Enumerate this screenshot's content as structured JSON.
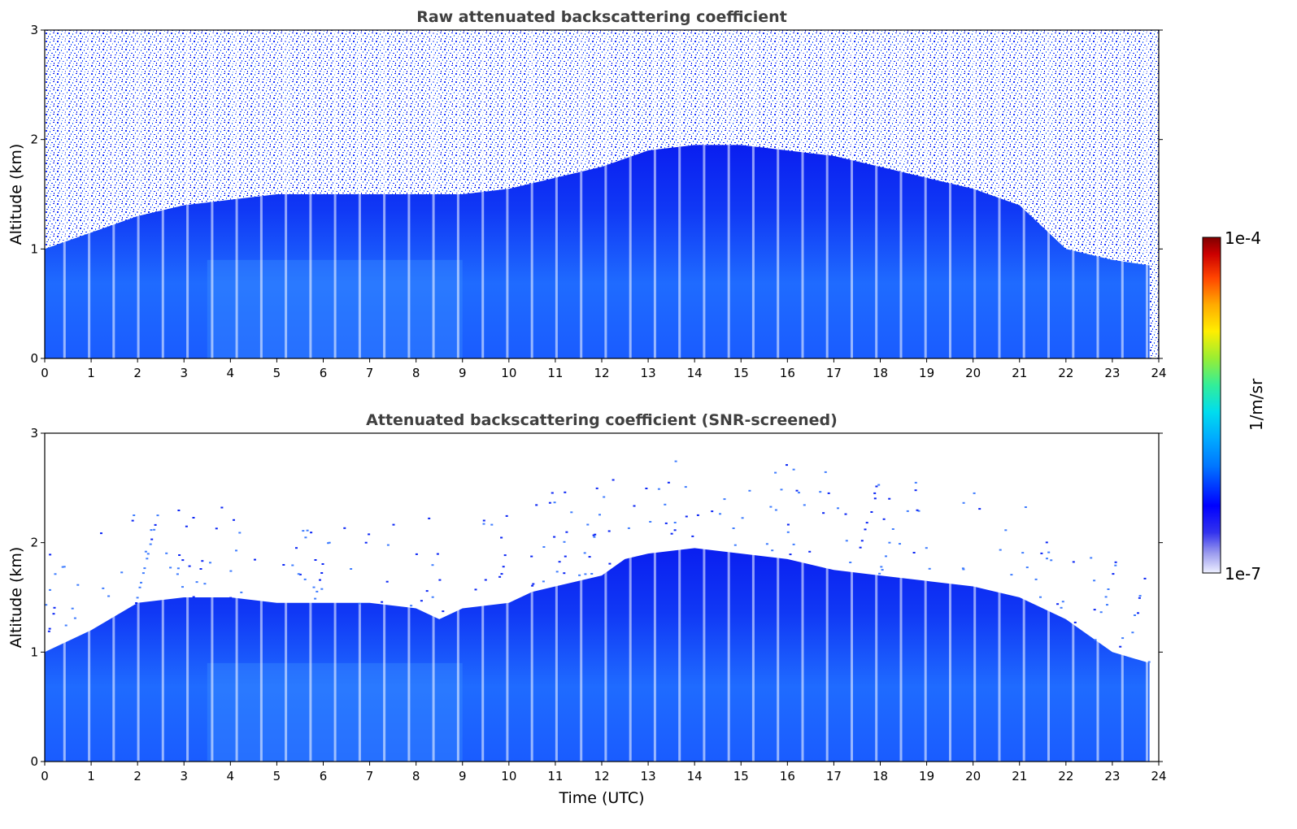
{
  "chart_data": [
    {
      "type": "heatmap",
      "title": "Raw attenuated backscattering coefficient",
      "xlabel": "",
      "ylabel": "Altitude (km)",
      "xlim": [
        0,
        24
      ],
      "ylim": [
        0,
        3
      ],
      "xticks": [
        "0",
        "1",
        "2",
        "3",
        "4",
        "5",
        "6",
        "7",
        "8",
        "9",
        "10",
        "11",
        "12",
        "13",
        "14",
        "15",
        "16",
        "17",
        "18",
        "19",
        "20",
        "21",
        "22",
        "23",
        "24"
      ],
      "yticks": [
        "0",
        "1",
        "2",
        "3"
      ],
      "colorbar": {
        "min_label": "1e-7",
        "max_label": "1e-4",
        "label": "1/m/sr",
        "scale": "log",
        "range": [
          1e-07,
          0.0001
        ]
      },
      "signal_top_km": {
        "time": [
          0,
          1,
          2,
          3,
          4,
          5,
          6,
          7,
          8,
          9,
          10,
          11,
          12,
          13,
          14,
          15,
          16,
          17,
          18,
          19,
          20,
          21,
          22,
          23,
          23.8
        ],
        "altitude": [
          1.0,
          1.15,
          1.3,
          1.4,
          1.45,
          1.5,
          1.5,
          1.5,
          1.5,
          1.5,
          1.55,
          1.65,
          1.75,
          1.9,
          1.95,
          1.95,
          1.9,
          1.85,
          1.75,
          1.65,
          1.55,
          1.4,
          1.0,
          0.9,
          0.85
        ]
      }
    },
    {
      "type": "heatmap",
      "title": "Attenuated backscattering coefficient (SNR-screened)",
      "xlabel": "Time (UTC)",
      "ylabel": "Altitude (km)",
      "xlim": [
        0,
        24
      ],
      "ylim": [
        0,
        3
      ],
      "xticks": [
        "0",
        "1",
        "2",
        "3",
        "4",
        "5",
        "6",
        "7",
        "8",
        "9",
        "10",
        "11",
        "12",
        "13",
        "14",
        "15",
        "16",
        "17",
        "18",
        "19",
        "20",
        "21",
        "22",
        "23",
        "24"
      ],
      "yticks": [
        "0",
        "1",
        "2",
        "3"
      ],
      "boundary_layer_top_km": {
        "time": [
          0,
          1,
          2,
          3,
          4,
          5,
          6,
          7,
          8,
          8.5,
          9,
          10,
          10.5,
          11,
          12,
          12.5,
          13,
          14,
          15,
          16,
          16.5,
          17,
          18,
          19,
          20,
          20.5,
          21,
          22,
          23,
          23.8
        ],
        "altitude": [
          1.0,
          1.2,
          1.45,
          1.5,
          1.5,
          1.45,
          1.45,
          1.45,
          1.4,
          1.3,
          1.4,
          1.45,
          1.55,
          1.6,
          1.7,
          1.85,
          1.9,
          1.95,
          1.9,
          1.85,
          1.8,
          1.75,
          1.7,
          1.65,
          1.6,
          1.55,
          1.5,
          1.3,
          1.0,
          0.9
        ]
      }
    }
  ]
}
